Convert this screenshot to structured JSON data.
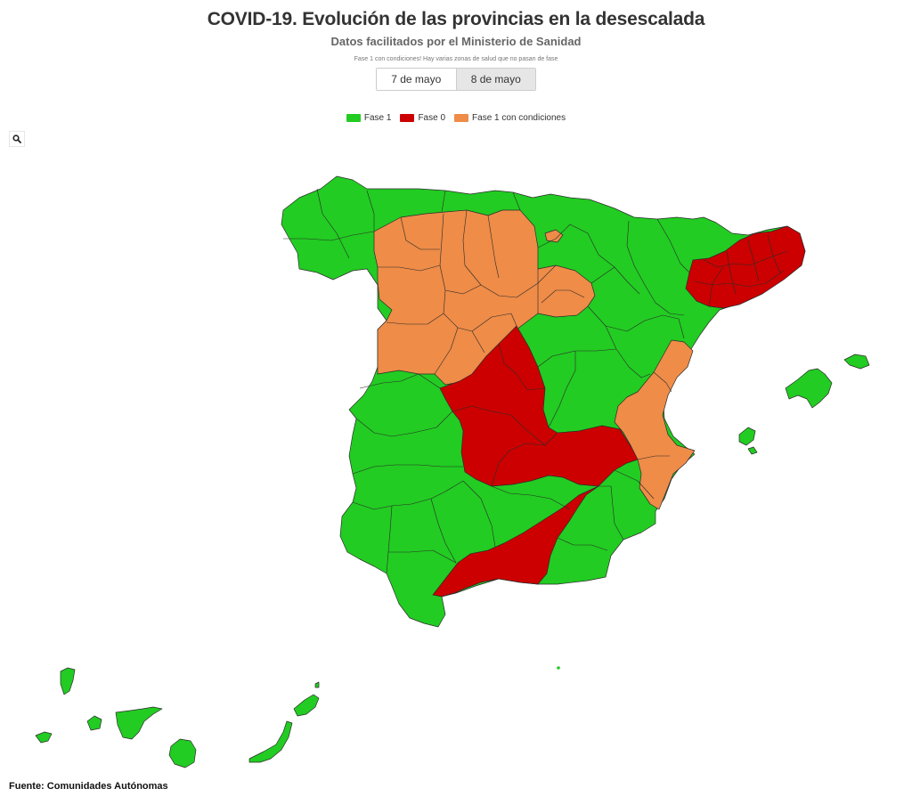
{
  "header": {
    "title": "COVID-19. Evolución de las provincias en la desescalada",
    "subtitle": "Datos facilitados por el Ministerio de Sanidad",
    "note": "Fase 1 con condiciones! Hay varias zonas de salud que no pasan de fase"
  },
  "date_toggle": {
    "options": [
      "7 de mayo",
      "8 de mayo"
    ],
    "selected": "8 de mayo"
  },
  "legend": {
    "items": [
      {
        "label": "Fase 1",
        "color": "#22cc22"
      },
      {
        "label": "Fase 0",
        "color": "#cc0000"
      },
      {
        "label": "Fase 1 con condiciones",
        "color": "#ee8c48"
      }
    ]
  },
  "colors": {
    "fase1": "#22cc22",
    "fase0": "#cc0000",
    "fase1_cond": "#ee8c48",
    "border": "#2b2b2b"
  },
  "icons": {
    "search": "search-icon"
  },
  "footer": {
    "source": "Fuente: Comunidades Autónomas"
  }
}
